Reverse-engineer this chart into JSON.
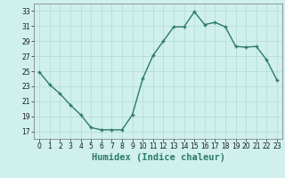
{
  "x": [
    0,
    1,
    2,
    3,
    4,
    5,
    6,
    7,
    8,
    9,
    10,
    11,
    12,
    13,
    14,
    15,
    16,
    17,
    18,
    19,
    20,
    21,
    22,
    23
  ],
  "y": [
    24.9,
    23.2,
    22.0,
    20.5,
    19.2,
    17.5,
    17.2,
    17.2,
    17.2,
    19.2,
    24.0,
    27.1,
    29.0,
    30.9,
    30.9,
    32.9,
    31.2,
    31.5,
    30.9,
    28.3,
    28.2,
    28.3,
    26.5,
    23.8
  ],
  "line_color": "#2d7a6a",
  "marker": "+",
  "marker_size": 4,
  "bg_color": "#cff0ec",
  "grid_color": "#b8ddd8",
  "xlabel": "Humidex (Indice chaleur)",
  "xlim": [
    -0.5,
    23.5
  ],
  "ylim": [
    16,
    34
  ],
  "yticks": [
    17,
    19,
    21,
    23,
    25,
    27,
    29,
    31,
    33
  ],
  "xticks": [
    0,
    1,
    2,
    3,
    4,
    5,
    6,
    7,
    8,
    9,
    10,
    11,
    12,
    13,
    14,
    15,
    16,
    17,
    18,
    19,
    20,
    21,
    22,
    23
  ],
  "tick_fontsize": 5.5,
  "xlabel_fontsize": 7.5,
  "line_width": 1.0,
  "marker_size_pt": 3.5
}
